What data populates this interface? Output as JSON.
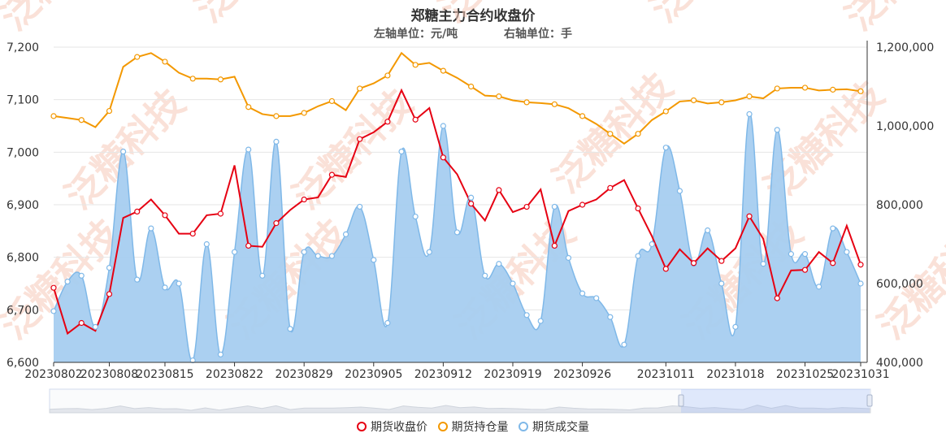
{
  "chart_data": {
    "type": "line+area",
    "title": "郑糖主力合约收盘价",
    "subtitle_left": "左轴单位：元/吨",
    "subtitle_right": "右轴单位：手",
    "left_axis": {
      "min": 6600,
      "max": 7200,
      "ticks": [
        6600,
        6700,
        6800,
        6900,
        7000,
        7100,
        7200
      ],
      "tick_labels": [
        "6,600",
        "6,700",
        "6,800",
        "6,900",
        "7,000",
        "7,100",
        "7,200"
      ]
    },
    "right_axis": {
      "min": 400000,
      "max": 1200000,
      "ticks": [
        400000,
        600000,
        800000,
        1000000,
        1200000
      ],
      "tick_labels": [
        "400,000",
        "600,000",
        "800,000",
        "1,000,000",
        "1,200,000"
      ]
    },
    "x_tick_labels": [
      "20230802",
      "20230808",
      "20230815",
      "20230822",
      "20230829",
      "20230905",
      "20230912",
      "20230919",
      "20230926",
      "20231011",
      "20231018",
      "20231025",
      "20231031"
    ],
    "x_tick_indices": [
      0,
      4,
      8,
      13,
      18,
      23,
      28,
      33,
      38,
      44,
      49,
      54,
      58
    ],
    "legend_position": "bottom-center",
    "watermark": "泛糖科技",
    "colors": {
      "close": "#e60012",
      "open_interest": "#f39800",
      "volume_line": "#7fb8e8",
      "volume_fill": "#a6cdf0",
      "grid": "#e6e6e6"
    },
    "series": [
      {
        "name": "期货收盘价",
        "axis": "left",
        "style": "line",
        "marker_every": 2,
        "values": [
          6742,
          6655,
          6675,
          6660,
          6730,
          6875,
          6887,
          6910,
          6880,
          6845,
          6845,
          6880,
          6883,
          6975,
          6822,
          6820,
          6865,
          6890,
          6910,
          6914,
          6957,
          6953,
          7025,
          7038,
          7058,
          7118,
          7062,
          7084,
          6990,
          6958,
          6902,
          6870,
          6928,
          6886,
          6896,
          6929,
          6822,
          6888,
          6900,
          6910,
          6932,
          6947,
          6893,
          6840,
          6778,
          6815,
          6789,
          6817,
          6793,
          6817,
          6878,
          6835,
          6722,
          6775,
          6776,
          6810,
          6789,
          6860,
          6786
        ]
      },
      {
        "name": "期货持仓量",
        "axis": "right",
        "style": "line",
        "marker_every": 2,
        "values": [
          1025000,
          1020000,
          1015000,
          997000,
          1038000,
          1150000,
          1175000,
          1185000,
          1163000,
          1135000,
          1120000,
          1120000,
          1118000,
          1125000,
          1048000,
          1030000,
          1025000,
          1025000,
          1033000,
          1050000,
          1063000,
          1040000,
          1095000,
          1108000,
          1128000,
          1185000,
          1155000,
          1160000,
          1140000,
          1122000,
          1100000,
          1077000,
          1075000,
          1065000,
          1060000,
          1058000,
          1055000,
          1045000,
          1025000,
          1005000,
          980000,
          955000,
          980000,
          1015000,
          1037000,
          1062000,
          1065000,
          1057000,
          1060000,
          1065000,
          1075000,
          1070000,
          1095000,
          1097000,
          1097000,
          1090000,
          1092000,
          1093000,
          1088000
        ]
      },
      {
        "name": "期货成交量",
        "axis": "right",
        "style": "area",
        "marker_every": 1,
        "values": [
          530000,
          605000,
          620000,
          490000,
          640000,
          935000,
          610000,
          740000,
          590000,
          600000,
          405000,
          700000,
          420000,
          680000,
          940000,
          620000,
          960000,
          485000,
          680000,
          670000,
          670000,
          725000,
          795000,
          660000,
          500000,
          935000,
          770000,
          680000,
          1000000,
          730000,
          818000,
          620000,
          650000,
          600000,
          520000,
          505000,
          795000,
          665000,
          575000,
          563000,
          515000,
          445000,
          670000,
          700000,
          945000,
          835000,
          650000,
          735000,
          600000,
          490000,
          1030000,
          650000,
          990000,
          675000,
          675000,
          592000,
          740000,
          680000,
          600000
        ]
      }
    ]
  }
}
